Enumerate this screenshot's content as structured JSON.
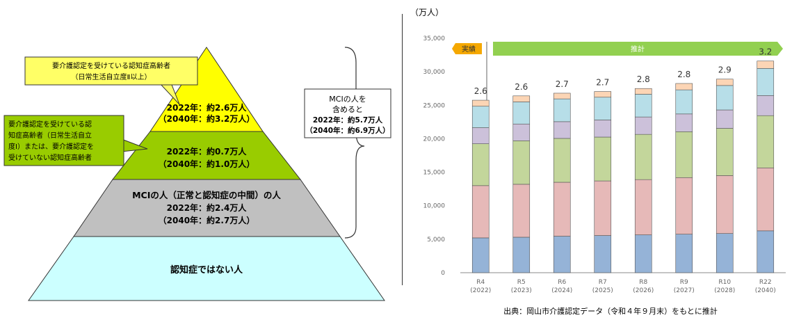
{
  "pyramid": {
    "tiers": [
      {
        "key": "top",
        "color": "#ffff00",
        "lines": [
          "2022年：約2.6万人",
          "（2040年：約3.2万人）"
        ]
      },
      {
        "key": "second",
        "color": "#99cc00",
        "lines": [
          "2022年：約0.7万人",
          "（2040年：約1.0万人）"
        ]
      },
      {
        "key": "mci",
        "color": "#c0c0c0",
        "lines": [
          "MCIの人（正常と認知症の中間）の人",
          "2022年：約2.4万人",
          "（2040年：約2.7万人）"
        ]
      },
      {
        "key": "base",
        "color": "#ccffff",
        "lines": [
          "認知症ではない人"
        ]
      }
    ],
    "callout_1": {
      "color": "#ffff66",
      "lines": [
        "要介護認定を受けている認知症高齢者",
        "（日常生活自立度Ⅱ以上）"
      ]
    },
    "callout_2": {
      "color": "#99cc00",
      "lines": [
        "要介護認定を受けている認",
        "知症高齢者（日常生活自立",
        "度Ⅰ）または、要介護認定を",
        "受けていない認知症高齢者"
      ]
    },
    "mci_box": {
      "lines": [
        "MCIの人を",
        "含めると",
        "2022年：約5.7万人",
        "（2040年：約6.9万人）"
      ]
    }
  },
  "chart_unit_label": "（万人）",
  "source_note": "出典：岡山市介護認定データ（令和４年９月末）をもとに推計",
  "banners": {
    "actual": "実績",
    "forecast": "推計"
  },
  "chart_data": {
    "type": "bar",
    "stacked": true,
    "categories": [
      "R4\n(2022)",
      "R5\n(2023)",
      "R6\n(2024)",
      "R7\n(2025)",
      "R8\n(2026)",
      "R9\n(2027)",
      "R10\n(2028)",
      "R22\n(2040)"
    ],
    "series": [
      {
        "color": "#95b3d7",
        "values": [
          5200,
          5300,
          5450,
          5550,
          5650,
          5750,
          5850,
          6250
        ]
      },
      {
        "color": "#e6b9b8",
        "values": [
          7800,
          7900,
          8050,
          8150,
          8250,
          8450,
          8650,
          9400
        ]
      },
      {
        "color": "#c3d69b",
        "values": [
          6250,
          6500,
          6550,
          6550,
          6750,
          6850,
          7050,
          7800
        ]
      },
      {
        "color": "#ccc1da",
        "values": [
          2400,
          2500,
          2500,
          2550,
          2600,
          2650,
          2750,
          3000
        ]
      },
      {
        "color": "#b7dee8",
        "values": [
          3200,
          3300,
          3400,
          3400,
          3400,
          3600,
          3650,
          4050
        ]
      },
      {
        "color": "#fcd5b5",
        "values": [
          900,
          900,
          850,
          850,
          850,
          950,
          950,
          1100
        ]
      }
    ],
    "top_labels": [
      "2.6",
      "2.6",
      "2.7",
      "2.7",
      "2.8",
      "2.8",
      "2.9",
      "3.2"
    ],
    "ylim": [
      0,
      35000
    ],
    "yticks": [
      "0",
      "5,000",
      "10,000",
      "15,000",
      "20,000",
      "25,000",
      "30,000",
      "35,000"
    ],
    "grid": false,
    "ylabel": "（万人）"
  }
}
